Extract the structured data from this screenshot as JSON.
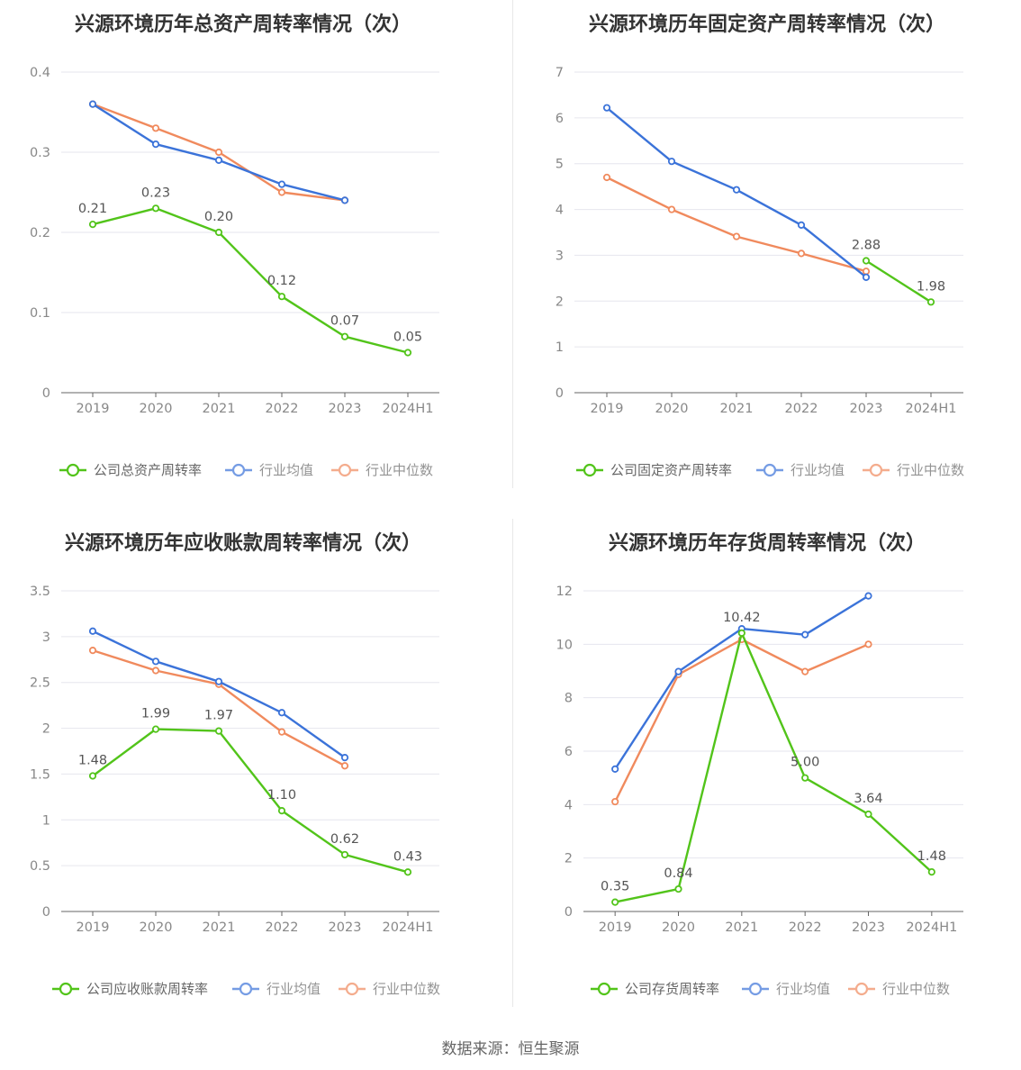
{
  "source_text": "数据来源：恒生聚源",
  "colors": {
    "company": "#52c41a",
    "avg": "#3b73d9",
    "median": "#f08a5d",
    "grid": "#e6e6ee",
    "axis": "#666666"
  },
  "chart_data": [
    {
      "type": "line",
      "title": "兴源环境历年总资产周转率情况（次）",
      "categories": [
        "2019",
        "2020",
        "2021",
        "2022",
        "2023",
        "2024H1"
      ],
      "ylim": [
        0,
        0.4
      ],
      "yticks": [
        0,
        0.1,
        0.2,
        0.3,
        0.4
      ],
      "ytick_labels": [
        "0",
        "0.1",
        "0.2",
        "0.3",
        "0.4"
      ],
      "series": [
        {
          "name": "公司总资产周转率",
          "values": [
            0.21,
            0.23,
            0.2,
            0.12,
            0.07,
            0.05
          ],
          "labels": [
            "0.21",
            "0.23",
            "0.20",
            "0.12",
            "0.07",
            "0.05"
          ]
        },
        {
          "name": "行业均值",
          "values": [
            0.36,
            0.31,
            0.29,
            0.26,
            0.24,
            null
          ]
        },
        {
          "name": "行业中位数",
          "values": [
            0.36,
            0.33,
            0.3,
            0.25,
            0.24,
            null
          ]
        }
      ]
    },
    {
      "type": "line",
      "title": "兴源环境历年固定资产周转率情况（次）",
      "categories": [
        "2019",
        "2020",
        "2021",
        "2022",
        "2023",
        "2024H1"
      ],
      "ylim": [
        0,
        7
      ],
      "yticks": [
        0,
        1,
        2,
        3,
        4,
        5,
        6,
        7
      ],
      "ytick_labels": [
        "0",
        "1",
        "2",
        "3",
        "4",
        "5",
        "6",
        "7"
      ],
      "series": [
        {
          "name": "公司固定资产周转率",
          "values": [
            null,
            null,
            null,
            null,
            2.88,
            1.98
          ],
          "labels": [
            null,
            null,
            null,
            null,
            "2.88",
            "1.98"
          ]
        },
        {
          "name": "行业均值",
          "values": [
            6.22,
            5.05,
            4.43,
            3.66,
            2.52,
            null
          ]
        },
        {
          "name": "行业中位数",
          "values": [
            4.7,
            4.0,
            3.41,
            3.04,
            2.65,
            null
          ]
        }
      ]
    },
    {
      "type": "line",
      "title": "兴源环境历年应收账款周转率情况（次）",
      "categories": [
        "2019",
        "2020",
        "2021",
        "2022",
        "2023",
        "2024H1"
      ],
      "ylim": [
        0,
        3.5
      ],
      "yticks": [
        0,
        0.5,
        1,
        1.5,
        2,
        2.5,
        3,
        3.5
      ],
      "ytick_labels": [
        "0",
        "0.5",
        "1",
        "1.5",
        "2",
        "2.5",
        "3",
        "3.5"
      ],
      "series": [
        {
          "name": "公司应收账款周转率",
          "values": [
            1.48,
            1.99,
            1.97,
            1.1,
            0.62,
            0.43
          ],
          "labels": [
            "1.48",
            "1.99",
            "1.97",
            "1.10",
            "0.62",
            "0.43"
          ]
        },
        {
          "name": "行业均值",
          "values": [
            3.06,
            2.73,
            2.51,
            2.17,
            1.68,
            null
          ]
        },
        {
          "name": "行业中位数",
          "values": [
            2.85,
            2.63,
            2.48,
            1.96,
            1.59,
            null
          ]
        }
      ]
    },
    {
      "type": "line",
      "title": "兴源环境历年存货周转率情况（次）",
      "categories": [
        "2019",
        "2020",
        "2021",
        "2022",
        "2023",
        "2024H1"
      ],
      "ylim": [
        0,
        12
      ],
      "yticks": [
        0,
        2,
        4,
        6,
        8,
        10,
        12
      ],
      "ytick_labels": [
        "0",
        "2",
        "4",
        "6",
        "8",
        "10",
        "12"
      ],
      "series": [
        {
          "name": "公司存货周转率",
          "values": [
            0.35,
            0.84,
            10.42,
            5.0,
            3.64,
            1.48
          ],
          "labels": [
            "0.35",
            "0.84",
            "10.42",
            "5.00",
            "3.64",
            "1.48"
          ]
        },
        {
          "name": "行业均值",
          "values": [
            5.33,
            8.98,
            10.58,
            10.36,
            11.81,
            null
          ]
        },
        {
          "name": "行业中位数",
          "values": [
            4.11,
            8.87,
            10.18,
            8.98,
            10.0,
            null
          ]
        }
      ]
    }
  ]
}
